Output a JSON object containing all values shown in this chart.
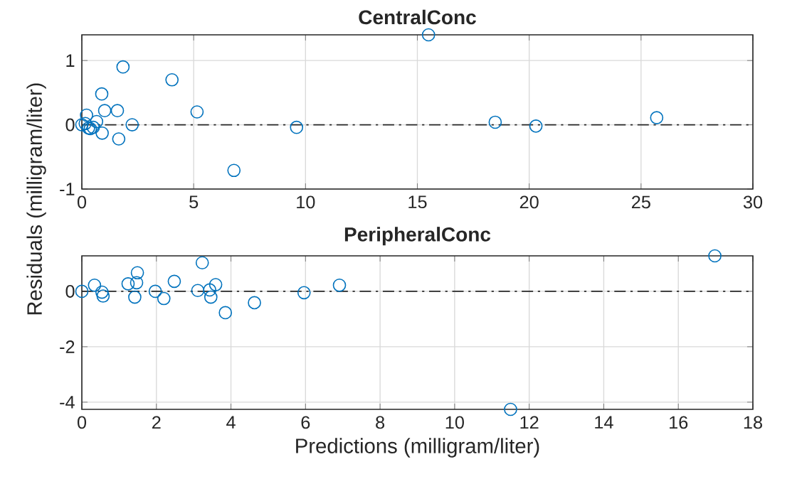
{
  "chart_data": [
    {
      "type": "scatter",
      "title": "CentralConc",
      "marker": "circle",
      "grid": true,
      "xlim": [
        0,
        30
      ],
      "ylim": [
        -1,
        1.4
      ],
      "xticks": [
        0,
        5,
        10,
        15,
        20,
        25,
        30
      ],
      "yticks": [
        -1,
        0,
        1
      ],
      "ref_lines": [
        {
          "axis": "y",
          "value": 0,
          "color": "#262626",
          "line_style": "dashdot"
        }
      ],
      "series": [
        {
          "color": "#0072bd",
          "x": [
            0,
            0.15,
            0.21,
            0.3,
            0.38,
            0.51,
            0.66,
            0.89,
            0.91,
            1.02,
            1.59,
            1.65,
            1.84,
            2.25,
            4.03,
            5.15,
            6.8,
            9.6,
            15.5,
            18.48,
            20.3,
            25.7
          ],
          "values": [
            0,
            0.02,
            0.15,
            -0.05,
            -0.06,
            -0.04,
            0.05,
            0.48,
            -0.13,
            0.22,
            0.22,
            -0.22,
            0.9,
            0,
            0.7,
            0.2,
            -0.71,
            -0.04,
            1.4,
            0.04,
            -0.02,
            0.11
          ]
        }
      ]
    },
    {
      "type": "scatter",
      "title": "PeripheralConc",
      "xlabel": "Predictions (milligram/liter)",
      "ylabel": "Residuals (milligram/liter)",
      "marker": "circle",
      "grid": true,
      "xlim": [
        0,
        18
      ],
      "ylim": [
        -4.26,
        1.28
      ],
      "xticks": [
        0,
        2,
        4,
        6,
        8,
        10,
        12,
        14,
        16,
        18
      ],
      "yticks": [
        -4,
        -2,
        0
      ],
      "ref_lines": [
        {
          "axis": "y",
          "value": 0,
          "color": "#262626",
          "line_style": "dashdot"
        }
      ],
      "series": [
        {
          "color": "#0072bd",
          "x": [
            0,
            0.34,
            0.54,
            0.57,
            1.24,
            1.42,
            1.47,
            1.49,
            1.97,
            2.2,
            2.48,
            3.11,
            3.23,
            3.43,
            3.46,
            3.59,
            3.85,
            4.63,
            5.96,
            6.91,
            11.5,
            16.98
          ],
          "values": [
            0,
            0.22,
            -0.03,
            -0.17,
            0.27,
            -0.21,
            0.31,
            0.67,
            0,
            -0.26,
            0.36,
            0.03,
            1.03,
            0.05,
            -0.21,
            0.24,
            -0.77,
            -0.41,
            -0.05,
            0.22,
            -4.26,
            1.28
          ]
        }
      ]
    }
  ]
}
